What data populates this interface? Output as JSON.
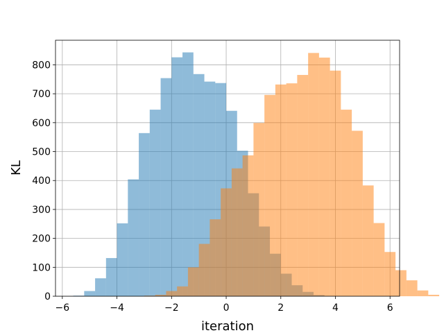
{
  "chart_data": {
    "type": "bar",
    "title": "",
    "xlabel": "iteration",
    "ylabel": "KL",
    "xlim": [
      -6.25,
      6.35
    ],
    "ylim": [
      0,
      885
    ],
    "x_ticks": [
      -6,
      -4,
      -2,
      0,
      2,
      4,
      6
    ],
    "x_tick_labels": [
      "−6",
      "−4",
      "−2",
      "0",
      "2",
      "4",
      "6"
    ],
    "y_ticks": [
      0,
      100,
      200,
      300,
      400,
      500,
      600,
      700,
      800
    ],
    "y_tick_labels": [
      "0",
      "100",
      "200",
      "300",
      "400",
      "500",
      "600",
      "700",
      "800"
    ],
    "grid": true,
    "bin_width": 0.4,
    "series": [
      {
        "color": "#1f77b4",
        "opacity": 0.5,
        "bin_start": -5.6,
        "values": [
          2,
          18,
          62,
          132,
          252,
          404,
          564,
          645,
          754,
          826,
          843,
          768,
          742,
          737,
          641,
          503,
          356,
          241,
          147,
          78,
          38,
          15,
          4,
          1,
          0,
          0,
          0,
          0,
          0
        ]
      },
      {
        "color": "#ff7f0e",
        "opacity": 0.5,
        "bin_start": -5.4,
        "values": [
          0,
          0,
          0,
          0,
          0,
          0,
          2,
          5,
          18,
          34,
          100,
          181,
          266,
          373,
          442,
          487,
          599,
          696,
          732,
          736,
          765,
          841,
          825,
          780,
          645,
          572,
          383,
          253,
          153,
          90,
          55,
          20,
          5
        ]
      }
    ]
  }
}
